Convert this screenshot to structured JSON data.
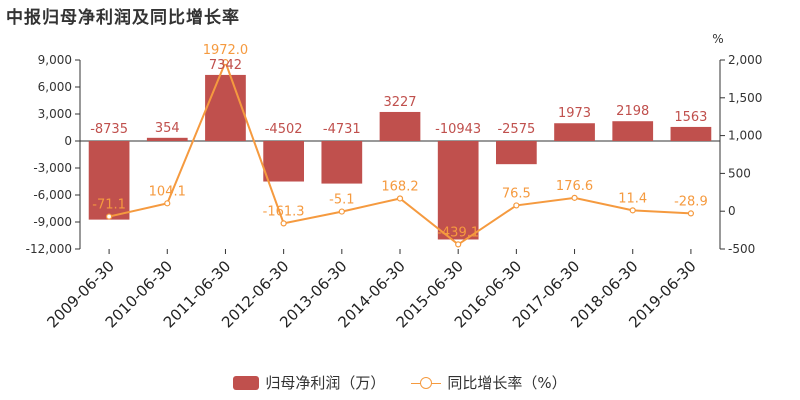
{
  "title": "中报归母净利润及同比增长率",
  "colors": {
    "bar": "#c0504d",
    "line": "#f59a3f",
    "bar_label": "#c0504d",
    "line_label": "#f59a3f"
  },
  "chart_data": {
    "type": "bar",
    "categories": [
      "2009-06-30",
      "2010-06-30",
      "2011-06-30",
      "2012-06-30",
      "2013-06-30",
      "2014-06-30",
      "2015-06-30",
      "2016-06-30",
      "2017-06-30",
      "2018-06-30",
      "2019-06-30"
    ],
    "series": [
      {
        "name": "归母净利润（万）",
        "type": "bar",
        "axis": "left",
        "values": [
          -8735,
          354,
          7342,
          -4502,
          -4731,
          3227,
          -10943,
          -2575,
          1973,
          2198,
          1563
        ],
        "labels": [
          "-8735",
          "354",
          "7342",
          "-4502",
          "-4731",
          "3227",
          "-10943",
          "-2575",
          "1973",
          "2198",
          "1563"
        ]
      },
      {
        "name": "同比增长率（%）",
        "type": "line",
        "axis": "right",
        "values": [
          -71.1,
          104.1,
          1972.0,
          -161.3,
          -5.1,
          168.2,
          -439.1,
          76.5,
          176.6,
          11.4,
          -28.9
        ],
        "labels": [
          "-71.1",
          "104.1",
          "1972.0",
          "-161.3",
          "-5.1",
          "168.2",
          "-439.1",
          "76.5",
          "176.6",
          "11.4",
          "-28.9"
        ]
      }
    ],
    "left_axis": {
      "min": -12000,
      "max": 9000,
      "ticks": [
        "9,000",
        "6,000",
        "3,000",
        "0",
        "-3,000",
        "-6,000",
        "-9,000",
        "-12,000"
      ],
      "tick_values": [
        9000,
        6000,
        3000,
        0,
        -3000,
        -6000,
        -9000,
        -12000
      ]
    },
    "right_axis": {
      "min": -500,
      "max": 2000,
      "unit": "%",
      "ticks": [
        "2,000",
        "1,500",
        "1,000",
        "500",
        "0",
        "-500"
      ],
      "tick_values": [
        2000,
        1500,
        1000,
        500,
        0,
        -500
      ]
    },
    "legend": "bottom-center",
    "grid": false
  },
  "legend": {
    "bar_label": "归母净利润（万）",
    "line_label": "同比增长率（%）"
  }
}
